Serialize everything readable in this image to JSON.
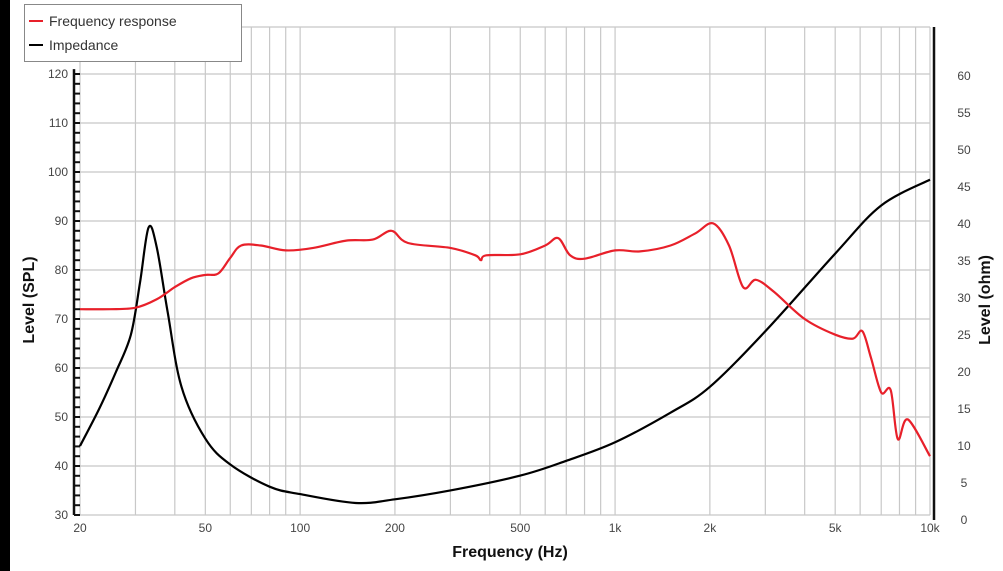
{
  "legend": {
    "items": [
      {
        "label": "Frequency response",
        "color": "#e8202a"
      },
      {
        "label": "Impedance",
        "color": "#000000"
      }
    ]
  },
  "chart_data": {
    "type": "line",
    "title": "",
    "xlabel": "Frequency (Hz)",
    "ylabel": "Level (SPL)",
    "y2label": "Level (ohm)",
    "xscale": "log",
    "xlim": [
      20,
      10000
    ],
    "ylim": [
      30,
      120
    ],
    "y2lim": [
      0,
      60
    ],
    "grid": true,
    "legend_position": "top-left",
    "x_ticks": [
      {
        "v": 20,
        "label": "20"
      },
      {
        "v": 50,
        "label": "50"
      },
      {
        "v": 100,
        "label": "100"
      },
      {
        "v": 200,
        "label": "200"
      },
      {
        "v": 500,
        "label": "500"
      },
      {
        "v": 1000,
        "label": "1k"
      },
      {
        "v": 2000,
        "label": "2k"
      },
      {
        "v": 5000,
        "label": "5k"
      },
      {
        "v": 10000,
        "label": "10k"
      }
    ],
    "y_ticks": [
      30,
      40,
      50,
      60,
      70,
      80,
      90,
      100,
      110,
      120
    ],
    "y2_ticks": [
      0,
      5,
      10,
      15,
      20,
      25,
      30,
      35,
      40,
      45,
      50,
      55,
      60
    ],
    "series": [
      {
        "name": "Frequency response",
        "axis": "left",
        "color": "#e8202a",
        "x": [
          20,
          25,
          30,
          35,
          40,
          45,
          50,
          55,
          60,
          65,
          75,
          90,
          110,
          140,
          170,
          195,
          220,
          300,
          360,
          375,
          390,
          500,
          600,
          660,
          720,
          800,
          1000,
          1200,
          1500,
          1800,
          2050,
          2300,
          2550,
          2800,
          3200,
          4000,
          5000,
          5700,
          6100,
          6500,
          7000,
          7500,
          7900,
          8500,
          10000
        ],
        "values": [
          72,
          72,
          72.3,
          74,
          76.5,
          78.3,
          79,
          79.3,
          82.5,
          85,
          85,
          84,
          84.5,
          86,
          86.2,
          88,
          85.5,
          84.5,
          83,
          82,
          83,
          83.2,
          85,
          86.5,
          83,
          82.3,
          84,
          83.8,
          85,
          87.5,
          89.5,
          85,
          76.5,
          78,
          75.5,
          70,
          66.8,
          66,
          67.5,
          62,
          55,
          55.5,
          45.5,
          49.5,
          42
        ]
      },
      {
        "name": "Impedance",
        "axis": "right",
        "color": "#000000",
        "x": [
          20,
          23,
          26,
          29,
          31,
          33,
          35,
          38,
          42,
          50,
          60,
          80,
          100,
          150,
          200,
          300,
          500,
          700,
          1000,
          1500,
          2000,
          3000,
          5000,
          7000,
          10000
        ],
        "values": [
          10,
          15,
          20,
          25,
          32,
          39.5,
          37,
          28,
          18,
          11,
          7.5,
          4.5,
          3.5,
          2.3,
          2.8,
          4,
          6,
          8,
          10.5,
          14.5,
          18,
          25.5,
          36,
          42.5,
          46
        ]
      }
    ]
  }
}
